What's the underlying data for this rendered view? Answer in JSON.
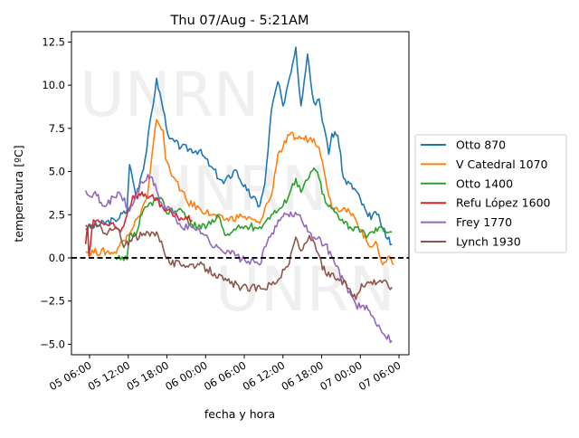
{
  "chart_data": {
    "type": "line",
    "title": "Thu 07/Aug - 5:21AM",
    "xlabel": "fecha y hora",
    "ylabel": "temperatura [ºC]",
    "x_units": "hours since 05 00:00",
    "xlim": [
      3.19,
      55.54
    ],
    "ylim": [
      -5.61,
      13.1
    ],
    "xticks": [
      6,
      12,
      18,
      24,
      30,
      36,
      42,
      48,
      54
    ],
    "xtick_labels": [
      "05 06:00",
      "05 12:00",
      "05 18:00",
      "06 00:00",
      "06 06:00",
      "06 12:00",
      "06 18:00",
      "07 00:00",
      "07 06:00"
    ],
    "yticks": [
      -5.0,
      -2.5,
      0.0,
      2.5,
      5.0,
      7.5,
      10.0,
      12.5
    ],
    "ytick_labels": [
      "−5.0",
      "−2.5",
      "0.0",
      "2.5",
      "5.0",
      "7.5",
      "10.0",
      "12.5"
    ],
    "hline": {
      "y": 0,
      "style": "dashed",
      "color": "#000000"
    },
    "legend_position": "right-outside",
    "watermark": "UNRN",
    "grid": false,
    "series": [
      {
        "name": "Otto 870",
        "color": "#1f77b4",
        "points": [
          [
            5.4,
            1.7
          ],
          [
            9.9,
            2.2
          ],
          [
            11.8,
            2.7
          ],
          [
            12.2,
            5.4
          ],
          [
            13.2,
            3.6
          ],
          [
            14.6,
            5.7
          ],
          [
            16.4,
            10.4
          ],
          [
            17.4,
            8.6
          ],
          [
            18.4,
            6.9
          ],
          [
            20.2,
            6.4
          ],
          [
            23.0,
            6.2
          ],
          [
            24.8,
            5.3
          ],
          [
            26.8,
            4.3
          ],
          [
            28.6,
            5.1
          ],
          [
            30.4,
            3.9
          ],
          [
            32.4,
            3.0
          ],
          [
            33.2,
            4.3
          ],
          [
            34.2,
            8.5
          ],
          [
            35.2,
            10.2
          ],
          [
            36.0,
            8.8
          ],
          [
            38.0,
            12.2
          ],
          [
            38.8,
            8.8
          ],
          [
            39.8,
            11.8
          ],
          [
            40.8,
            9.0
          ],
          [
            41.6,
            9.2
          ],
          [
            43.1,
            6.0
          ],
          [
            43.6,
            7.2
          ],
          [
            44.5,
            7.1
          ],
          [
            45.4,
            4.6
          ],
          [
            47.3,
            3.9
          ],
          [
            49.2,
            2.4
          ],
          [
            50.6,
            2.5
          ],
          [
            51.5,
            1.7
          ],
          [
            52.9,
            0.8
          ]
        ]
      },
      {
        "name": "V Catedral 1070",
        "color": "#ff7f0e",
        "points": [
          [
            5.4,
            0.35
          ],
          [
            9.9,
            0.35
          ],
          [
            11.8,
            1.3
          ],
          [
            13.6,
            2.4
          ],
          [
            15.0,
            3.6
          ],
          [
            15.5,
            5.3
          ],
          [
            16.4,
            8.0
          ],
          [
            17.4,
            7.4
          ],
          [
            17.8,
            5.7
          ],
          [
            19.2,
            4.6
          ],
          [
            20.2,
            3.9
          ],
          [
            21.2,
            3.2
          ],
          [
            23.0,
            2.9
          ],
          [
            24.8,
            2.5
          ],
          [
            26.8,
            2.2
          ],
          [
            29.6,
            2.4
          ],
          [
            32.4,
            2.0
          ],
          [
            33.2,
            2.9
          ],
          [
            34.2,
            3.6
          ],
          [
            35.2,
            6.0
          ],
          [
            36.0,
            6.4
          ],
          [
            37.0,
            7.1
          ],
          [
            38.8,
            6.9
          ],
          [
            40.8,
            6.9
          ],
          [
            41.6,
            6.4
          ],
          [
            42.6,
            4.6
          ],
          [
            43.6,
            2.9
          ],
          [
            45.4,
            2.9
          ],
          [
            47.3,
            2.2
          ],
          [
            49.2,
            0.8
          ],
          [
            50.6,
            0.8
          ],
          [
            51.5,
            -0.4
          ],
          [
            52.5,
            0.1
          ],
          [
            53.2,
            -0.4
          ]
        ]
      },
      {
        "name": "Otto 1400",
        "color": "#2ca02c",
        "points": [
          [
            10.1,
            -0.1
          ],
          [
            10.8,
            -0.1
          ],
          [
            11.8,
            -0.1
          ],
          [
            12.2,
            1.3
          ],
          [
            13.2,
            1.3
          ],
          [
            14.1,
            2.5
          ],
          [
            15.5,
            3.2
          ],
          [
            17.0,
            3.5
          ],
          [
            17.8,
            2.7
          ],
          [
            20.2,
            2.8
          ],
          [
            21.6,
            2.0
          ],
          [
            24.0,
            1.7
          ],
          [
            25.8,
            2.5
          ],
          [
            27.2,
            1.3
          ],
          [
            29.6,
            1.8
          ],
          [
            32.4,
            1.8
          ],
          [
            34.2,
            2.5
          ],
          [
            36.0,
            3.0
          ],
          [
            38.0,
            4.6
          ],
          [
            38.8,
            3.8
          ],
          [
            40.8,
            5.2
          ],
          [
            41.6,
            4.6
          ],
          [
            42.6,
            3.2
          ],
          [
            44.5,
            2.5
          ],
          [
            46.4,
            1.8
          ],
          [
            49.2,
            1.3
          ],
          [
            51.1,
            1.8
          ],
          [
            52.9,
            1.5
          ]
        ]
      },
      {
        "name": "Refu López 1600",
        "color": "#d62728",
        "points": [
          [
            5.4,
            0.8
          ],
          [
            5.7,
            1.8
          ],
          [
            5.9,
            0.1
          ],
          [
            6.6,
            2.2
          ],
          [
            8.0,
            2.0
          ],
          [
            9.9,
            1.8
          ],
          [
            10.8,
            1.5
          ],
          [
            11.8,
            2.5
          ],
          [
            12.7,
            3.6
          ],
          [
            14.6,
            3.7
          ],
          [
            16.0,
            3.4
          ],
          [
            17.4,
            2.9
          ],
          [
            19.2,
            2.4
          ],
          [
            21.9,
            2.2
          ]
        ]
      },
      {
        "name": "Frey 1770",
        "color": "#9467bd",
        "points": [
          [
            5.4,
            3.9
          ],
          [
            7.1,
            3.6
          ],
          [
            8.0,
            3.0
          ],
          [
            9.9,
            3.5
          ],
          [
            10.6,
            3.8
          ],
          [
            12.2,
            2.7
          ],
          [
            14.1,
            4.4
          ],
          [
            15.5,
            4.7
          ],
          [
            16.4,
            3.9
          ],
          [
            17.4,
            2.9
          ],
          [
            18.4,
            2.9
          ],
          [
            20.2,
            1.8
          ],
          [
            23.0,
            1.7
          ],
          [
            25.4,
            0.6
          ],
          [
            27.6,
            0.4
          ],
          [
            29.6,
            -0.1
          ],
          [
            32.4,
            -0.4
          ],
          [
            33.8,
            1.2
          ],
          [
            36.0,
            2.4
          ],
          [
            38.4,
            2.5
          ],
          [
            40.8,
            1.2
          ],
          [
            42.6,
            0.8
          ],
          [
            44.0,
            -0.3
          ],
          [
            45.4,
            -1.3
          ],
          [
            47.3,
            -2.7
          ],
          [
            49.2,
            -3.0
          ],
          [
            51.1,
            -4.1
          ],
          [
            52.9,
            -4.8
          ]
        ]
      },
      {
        "name": "Lynch 1930",
        "color": "#8c564b",
        "points": [
          [
            5.4,
            1.9
          ],
          [
            7.1,
            1.8
          ],
          [
            8.9,
            1.5
          ],
          [
            10.4,
            1.7
          ],
          [
            11.3,
            0.6
          ],
          [
            12.7,
            1.2
          ],
          [
            14.6,
            1.3
          ],
          [
            16.4,
            1.5
          ],
          [
            17.4,
            0.6
          ],
          [
            18.4,
            -0.3
          ],
          [
            20.6,
            -0.4
          ],
          [
            23.0,
            -0.4
          ],
          [
            25.4,
            -0.9
          ],
          [
            26.8,
            -1.3
          ],
          [
            29.6,
            -1.7
          ],
          [
            32.8,
            -1.8
          ],
          [
            35.2,
            -1.3
          ],
          [
            37.0,
            -0.3
          ],
          [
            38.0,
            1.2
          ],
          [
            38.8,
            0.4
          ],
          [
            40.1,
            1.3
          ],
          [
            41.2,
            0.4
          ],
          [
            42.6,
            -0.9
          ],
          [
            44.5,
            -1.2
          ],
          [
            46.4,
            -1.8
          ],
          [
            47.3,
            -2.4
          ],
          [
            48.2,
            -1.5
          ],
          [
            51.1,
            -1.3
          ],
          [
            52.9,
            -1.7
          ]
        ]
      }
    ]
  }
}
